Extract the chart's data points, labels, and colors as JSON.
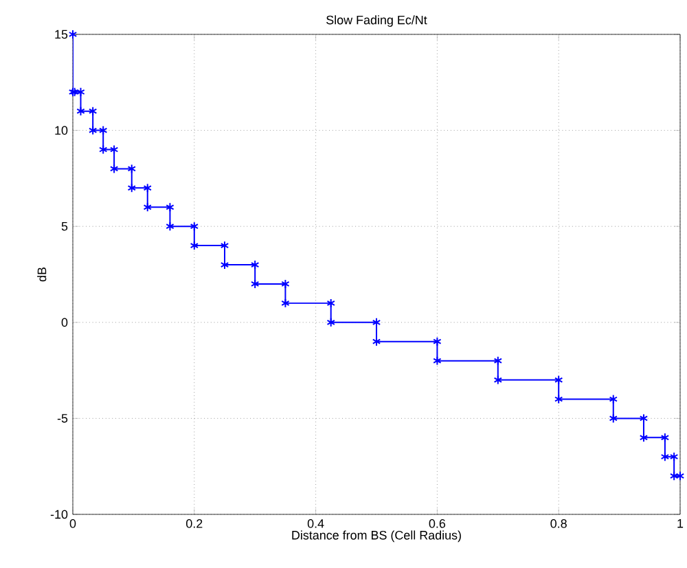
{
  "chart_data": {
    "type": "line",
    "title": "Slow Fading Ec/Nt",
    "xlabel": "Distance from BS (Cell Radius)",
    "ylabel": "dB",
    "x": [
      0,
      0,
      0.003,
      0.013,
      0.013,
      0.033,
      0.033,
      0.05,
      0.05,
      0.068,
      0.068,
      0.097,
      0.097,
      0.123,
      0.123,
      0.16,
      0.16,
      0.2,
      0.2,
      0.25,
      0.25,
      0.3,
      0.3,
      0.35,
      0.35,
      0.425,
      0.425,
      0.5,
      0.5,
      0.6,
      0.6,
      0.7,
      0.7,
      0.8,
      0.8,
      0.89,
      0.89,
      0.94,
      0.94,
      0.975,
      0.975,
      0.99,
      0.99,
      1.0
    ],
    "series": [
      {
        "color": "#0000ff",
        "values": [
          15,
          12,
          12,
          12,
          11,
          11,
          10,
          10,
          9,
          9,
          8,
          8,
          7,
          7,
          6,
          6,
          5,
          5,
          4,
          4,
          3,
          3,
          2,
          2,
          1,
          1,
          0,
          0,
          -1,
          -1,
          -2,
          -2,
          -3,
          -3,
          -4,
          -4,
          -5,
          -5,
          -6,
          -6,
          -7,
          -7,
          -8,
          -8
        ]
      }
    ],
    "xlim": [
      0,
      1
    ],
    "ylim": [
      -10,
      15
    ],
    "xticks": [
      0,
      0.2,
      0.4,
      0.6,
      0.8,
      1
    ],
    "yticks": [
      -10,
      -5,
      0,
      5,
      10,
      15
    ],
    "grid": true,
    "marker": "cross",
    "line_style": "solid"
  }
}
